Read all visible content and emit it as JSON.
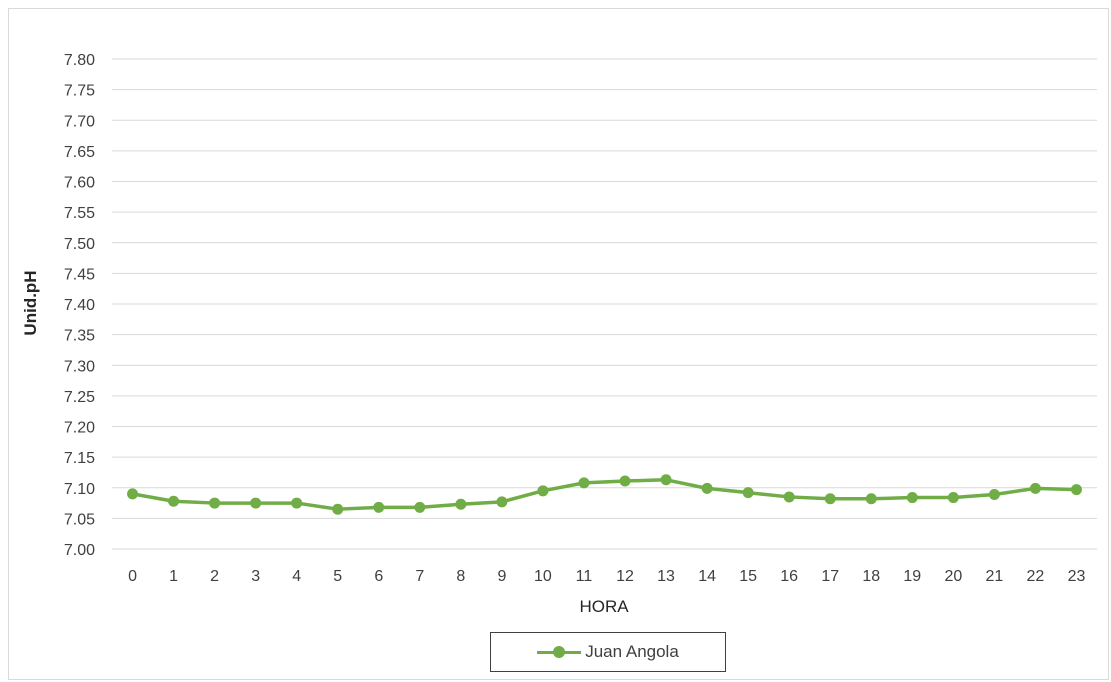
{
  "colors": {
    "series": "#70ad47",
    "grid": "#d9d9d9",
    "text": "#404040"
  },
  "chart_data": {
    "type": "line",
    "title": "",
    "xlabel": "HORA",
    "ylabel": "Unid.pH",
    "ylim": [
      7.0,
      7.8
    ],
    "ytick_step": 0.05,
    "grid": true,
    "legend_position": "bottom",
    "categories": [
      "0",
      "1",
      "2",
      "3",
      "4",
      "5",
      "6",
      "7",
      "8",
      "9",
      "10",
      "11",
      "12",
      "13",
      "14",
      "15",
      "16",
      "17",
      "18",
      "19",
      "20",
      "21",
      "22",
      "23"
    ],
    "series": [
      {
        "name": "Juan Angola",
        "values": [
          7.09,
          7.078,
          7.075,
          7.075,
          7.075,
          7.065,
          7.068,
          7.068,
          7.073,
          7.077,
          7.095,
          7.108,
          7.111,
          7.113,
          7.099,
          7.092,
          7.085,
          7.082,
          7.082,
          7.084,
          7.084,
          7.089,
          7.099,
          7.097
        ]
      }
    ]
  }
}
